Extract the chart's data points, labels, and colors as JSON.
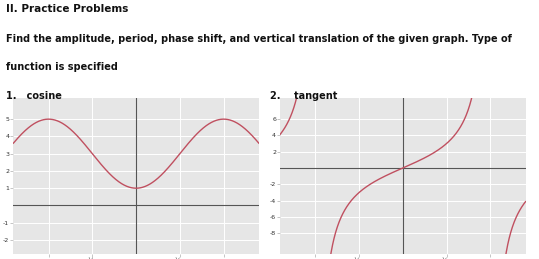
{
  "title_main": "II. Practice Problems",
  "subtitle_line1": "Find the amplitude, period, phase shift, and vertical translation of the given graph. Type of",
  "subtitle_line2": "function is specified",
  "label1": "1.   cosine",
  "label2": "2.    tangent",
  "plot_bg": "#e6e6e6",
  "curve_color": "#c05060",
  "grid_color": "#ffffff",
  "axis_color": "#555555",
  "text_color": "#111111",
  "font_size_title": 7.5,
  "font_size_label": 7,
  "font_size_tick": 4.5,
  "cos_xlim": [
    -4.4,
    4.4
  ],
  "cos_ylim": [
    -2.8,
    6.2
  ],
  "tan_xlim": [
    -4.4,
    4.4
  ],
  "tan_ylim": [
    -10.5,
    8.5
  ]
}
